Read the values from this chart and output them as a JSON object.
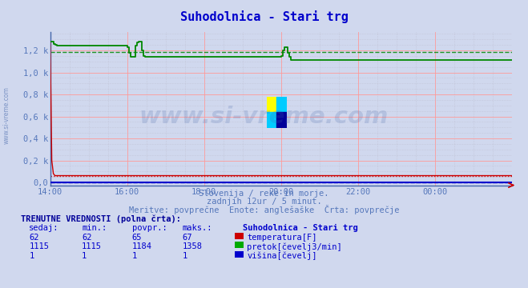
{
  "title": "Suhodolnica - Stari trg",
  "title_color": "#0000cc",
  "bg_color": "#d0d8ee",
  "plot_bg_color": "#d0d8ee",
  "grid_color_pink": "#ff9999",
  "grid_color_grey": "#bbbbcc",
  "xtick_labels": [
    "14:00",
    "16:00",
    "18:00",
    "20:00",
    "22:00",
    "00:00"
  ],
  "ytick_labels": [
    "0,0",
    "0,2 k",
    "0,4 k",
    "0,6 k",
    "0,8 k",
    "1,0 k",
    "1,2 k"
  ],
  "ytick_values": [
    0,
    200,
    400,
    600,
    800,
    1000,
    1200
  ],
  "ymax": 1370,
  "ymin": -30,
  "subtitle1": "Slovenija / reke in morje.",
  "subtitle2": "zadnjih 12ur / 5 minut.",
  "subtitle3": "Meritve: povprečne  Enote: anglešaške  Črta: povprečje",
  "subtitle_color": "#5577bb",
  "watermark": "www.si-vreme.com",
  "watermark_color": "#4466aa",
  "table_header": "TRENUTNE VREDNOSTI (polna črta):",
  "table_col_headers": [
    "sedaj:",
    "min.:",
    "povpr.:",
    "maks.:",
    "Suhodolnica - Stari trg"
  ],
  "table_rows": [
    [
      "62",
      "62",
      "65",
      "67",
      "temperatura[F]",
      "#cc0000"
    ],
    [
      "1115",
      "1115",
      "1184",
      "1358",
      "pretok[čevelj3/min]",
      "#00aa00"
    ],
    [
      "1",
      "1",
      "1",
      "1",
      "višina[čevelj]",
      "#0000cc"
    ]
  ],
  "temp_color": "#cc0000",
  "flow_color": "#008800",
  "height_color": "#0000cc",
  "n_points": 289
}
